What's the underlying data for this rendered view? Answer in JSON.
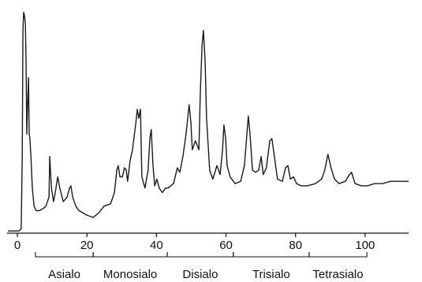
{
  "chart_data": {
    "type": "line",
    "color": "#1a1a1a",
    "x": [
      -2.7,
      0.5,
      1.1,
      1.4,
      1.6,
      1.8,
      2.0,
      2.3,
      2.5,
      2.7,
      2.9,
      3.2,
      3.4,
      3.6,
      3.9,
      4.3,
      4.8,
      5.4,
      6.3,
      7.5,
      8.2,
      9.1,
      9.3,
      9.8,
      10.4,
      10.9,
      11.6,
      12.2,
      13.2,
      14.3,
      15.0,
      15.4,
      15.9,
      16.8,
      17.7,
      20.0,
      21.8,
      23.4,
      24.9,
      26.8,
      27.9,
      28.6,
      29.0,
      29.5,
      30.2,
      30.8,
      31.3,
      31.7,
      32.4,
      33.1,
      34.0,
      34.5,
      34.9,
      35.4,
      35.8,
      36.7,
      37.6,
      38.1,
      38.5,
      39.0,
      39.5,
      40.1,
      40.8,
      41.7,
      42.6,
      43.3,
      44.9,
      46.0,
      46.7,
      47.6,
      48.5,
      49.4,
      49.9,
      50.3,
      51.2,
      52.2,
      52.6,
      53.1,
      53.5,
      54.0,
      54.4,
      55.3,
      56.2,
      57.4,
      58.3,
      59.0,
      59.4,
      59.9,
      60.3,
      61.2,
      62.6,
      64.2,
      65.3,
      66.0,
      66.4,
      66.9,
      67.6,
      68.5,
      69.4,
      70.1,
      70.7,
      71.6,
      72.6,
      73.2,
      73.9,
      74.8,
      76.2,
      77.1,
      77.8,
      78.5,
      79.4,
      80.3,
      81.6,
      83.4,
      85.7,
      87.5,
      88.4,
      89.3,
      90.2,
      91.2,
      92.5,
      94.3,
      95.5,
      96.1,
      97.1,
      98.9,
      100.7,
      102.7,
      105.0,
      107.3,
      109.5,
      112.5
    ],
    "values": [
      1,
      1,
      2,
      34,
      90,
      98,
      97,
      93,
      76,
      44,
      55,
      69,
      44,
      42,
      34,
      20,
      12,
      10,
      10,
      11,
      12,
      16,
      34,
      20,
      14,
      18,
      25,
      20,
      14,
      16,
      20,
      21,
      16,
      12,
      10,
      8,
      7,
      9,
      12,
      13,
      18,
      28,
      30,
      25,
      25,
      29,
      28,
      23,
      32,
      37,
      48,
      55,
      51,
      55,
      25,
      20,
      28,
      42,
      46,
      30,
      21,
      24,
      20,
      18,
      20,
      20,
      22,
      29,
      27,
      34,
      44,
      57,
      49,
      37,
      41,
      37,
      62,
      83,
      90,
      76,
      51,
      28,
      24,
      30,
      26,
      37,
      48,
      42,
      30,
      25,
      22,
      23,
      30,
      44,
      52,
      44,
      28,
      27,
      28,
      34,
      26,
      29,
      41,
      42,
      34,
      24,
      23,
      29,
      30,
      24,
      25,
      22,
      21,
      21,
      22,
      24,
      28,
      35,
      29,
      24,
      22,
      23,
      26,
      27,
      22,
      21,
      21,
      22,
      22,
      23,
      23,
      23
    ],
    "xlim": [
      -3,
      112.5
    ],
    "xticks": [
      0,
      20,
      40,
      60,
      80,
      100
    ],
    "ylim": [
      0,
      100
    ],
    "regions": [
      {
        "label": "Asialo",
        "start": 5.2,
        "end": 21.8
      },
      {
        "label": "Monosialo",
        "start": 21.8,
        "end": 43.1
      },
      {
        "label": "Disialo",
        "start": 43.1,
        "end": 62.1
      },
      {
        "label": "Trisialo",
        "start": 62.1,
        "end": 83.9
      },
      {
        "label": "Tetrasialo",
        "start": 83.9,
        "end": 100.5
      }
    ]
  }
}
